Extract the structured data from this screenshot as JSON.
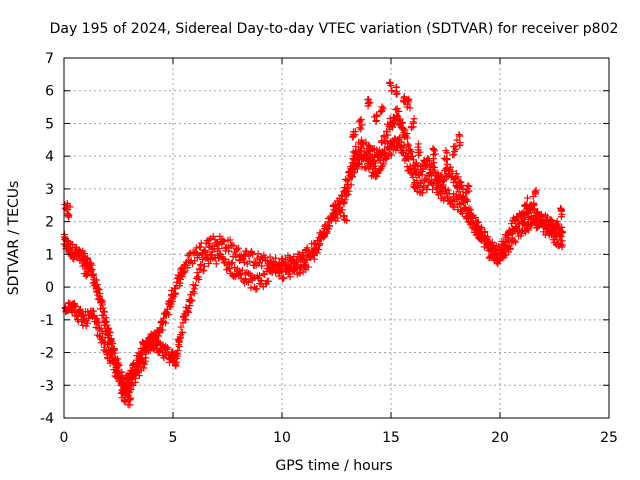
{
  "chart_data": {
    "type": "scatter",
    "title": "Day 195 of 2024, Sidereal Day-to-day VTEC variation (SDTVAR) for receiver p802",
    "xlabel": "GPS time / hours",
    "ylabel": "SDTVAR / TECUs",
    "xlim": [
      0,
      25
    ],
    "ylim": [
      -4,
      7
    ],
    "xticks": [
      0,
      5,
      10,
      15,
      20,
      25
    ],
    "yticks": [
      -4,
      -3,
      -2,
      -1,
      0,
      1,
      2,
      3,
      4,
      5,
      6,
      7
    ],
    "xtick_labels": [
      "0",
      "5",
      "10",
      "15",
      "20",
      "25"
    ],
    "ytick_labels": [
      "-4",
      "-3",
      "-2",
      "-1",
      "0",
      "1",
      "2",
      "3",
      "4",
      "5",
      "6",
      "7"
    ],
    "grid": true,
    "marker": "plus",
    "color": "#ff0000",
    "series": [
      {
        "name": "main-band",
        "points": [
          [
            0.0,
            1.4
          ],
          [
            0.2,
            1.2
          ],
          [
            0.4,
            1.1
          ],
          [
            0.6,
            1.0
          ],
          [
            0.8,
            0.9
          ],
          [
            1.0,
            0.8
          ],
          [
            1.2,
            0.6
          ],
          [
            1.4,
            0.2
          ],
          [
            1.6,
            -0.3
          ],
          [
            1.8,
            -0.8
          ],
          [
            2.0,
            -1.3
          ],
          [
            2.2,
            -1.8
          ],
          [
            2.4,
            -2.3
          ],
          [
            2.6,
            -2.7
          ],
          [
            2.8,
            -3.0
          ],
          [
            3.0,
            -2.8
          ],
          [
            3.2,
            -2.5
          ],
          [
            3.4,
            -2.2
          ],
          [
            3.6,
            -1.9
          ],
          [
            3.8,
            -1.8
          ],
          [
            4.0,
            -1.7
          ],
          [
            4.2,
            -1.6
          ],
          [
            4.5,
            -1.2
          ],
          [
            4.8,
            -0.6
          ],
          [
            5.0,
            -0.2
          ],
          [
            5.3,
            0.3
          ],
          [
            5.6,
            0.7
          ],
          [
            6.0,
            1.0
          ],
          [
            6.5,
            1.3
          ],
          [
            7.0,
            1.4
          ],
          [
            7.5,
            1.3
          ],
          [
            8.0,
            1.0
          ],
          [
            8.5,
            0.9
          ],
          [
            9.0,
            0.8
          ],
          [
            9.5,
            0.7
          ],
          [
            10.0,
            0.7
          ],
          [
            10.5,
            0.8
          ],
          [
            11.0,
            0.9
          ],
          [
            11.5,
            1.2
          ],
          [
            12.0,
            1.8
          ],
          [
            12.5,
            2.4
          ],
          [
            13.0,
            3.2
          ],
          [
            13.3,
            4.0
          ],
          [
            13.6,
            4.3
          ],
          [
            14.0,
            4.2
          ],
          [
            14.3,
            4.0
          ],
          [
            14.6,
            4.3
          ],
          [
            15.0,
            5.0
          ],
          [
            15.3,
            5.3
          ],
          [
            15.6,
            4.8
          ],
          [
            16.0,
            3.8
          ],
          [
            16.3,
            3.5
          ],
          [
            16.6,
            3.8
          ],
          [
            17.0,
            3.6
          ],
          [
            17.3,
            3.2
          ],
          [
            17.6,
            3.6
          ],
          [
            18.0,
            3.3
          ],
          [
            18.3,
            2.8
          ],
          [
            18.6,
            2.2
          ],
          [
            19.0,
            1.8
          ],
          [
            19.3,
            1.5
          ],
          [
            19.6,
            1.2
          ],
          [
            20.0,
            1.0
          ],
          [
            20.3,
            1.5
          ],
          [
            20.6,
            1.9
          ],
          [
            21.0,
            2.1
          ],
          [
            21.3,
            2.3
          ],
          [
            21.6,
            2.4
          ],
          [
            22.0,
            2.0
          ],
          [
            22.3,
            1.9
          ],
          [
            22.6,
            1.8
          ],
          [
            22.9,
            1.6
          ]
        ]
      },
      {
        "name": "lower-band",
        "points": [
          [
            0.0,
            -0.6
          ],
          [
            0.3,
            -0.5
          ],
          [
            0.6,
            -0.8
          ],
          [
            0.9,
            -1.0
          ],
          [
            1.3,
            -0.9
          ],
          [
            1.6,
            -1.3
          ],
          [
            1.9,
            -1.8
          ],
          [
            2.2,
            -2.3
          ],
          [
            2.5,
            -2.8
          ],
          [
            2.8,
            -3.3
          ],
          [
            3.0,
            -3.0
          ],
          [
            3.3,
            -2.7
          ],
          [
            3.6,
            -2.3
          ],
          [
            4.0,
            -1.6
          ],
          [
            4.3,
            -1.9
          ],
          [
            4.6,
            -2.0
          ],
          [
            4.9,
            -2.1
          ],
          [
            5.1,
            -2.3
          ],
          [
            5.3,
            -1.5
          ],
          [
            5.6,
            -0.8
          ],
          [
            5.9,
            -0.2
          ],
          [
            6.3,
            0.6
          ],
          [
            6.8,
            1.0
          ],
          [
            7.3,
            0.8
          ],
          [
            7.8,
            0.5
          ],
          [
            8.3,
            0.3
          ],
          [
            8.8,
            0.1
          ],
          [
            9.3,
            0.3
          ],
          [
            9.8,
            0.5
          ],
          [
            10.3,
            0.4
          ],
          [
            10.8,
            0.6
          ],
          [
            11.3,
            0.9
          ],
          [
            11.8,
            1.4
          ],
          [
            12.3,
            2.0
          ],
          [
            12.8,
            2.6
          ],
          [
            13.2,
            3.4
          ],
          [
            13.5,
            3.9
          ],
          [
            13.9,
            3.8
          ],
          [
            14.2,
            3.5
          ],
          [
            14.5,
            3.7
          ],
          [
            14.8,
            4.1
          ],
          [
            15.1,
            4.3
          ],
          [
            15.4,
            4.4
          ],
          [
            15.7,
            4.0
          ],
          [
            16.0,
            3.2
          ],
          [
            16.4,
            3.0
          ],
          [
            16.8,
            3.3
          ],
          [
            17.2,
            2.9
          ],
          [
            17.6,
            2.8
          ],
          [
            18.0,
            2.6
          ],
          [
            18.4,
            2.3
          ],
          [
            18.8,
            1.9
          ],
          [
            19.2,
            1.5
          ],
          [
            19.6,
            1.0
          ],
          [
            19.9,
            0.9
          ],
          [
            20.2,
            1.1
          ],
          [
            20.6,
            1.5
          ],
          [
            21.0,
            1.8
          ],
          [
            21.4,
            2.0
          ],
          [
            21.8,
            1.9
          ],
          [
            22.2,
            1.7
          ],
          [
            22.6,
            1.5
          ],
          [
            22.9,
            1.3
          ]
        ]
      },
      {
        "name": "upper-excursions",
        "points": [
          [
            0.1,
            2.4
          ],
          [
            0.2,
            2.3
          ],
          [
            13.3,
            4.7
          ],
          [
            13.6,
            5.0
          ],
          [
            14.0,
            5.6
          ],
          [
            14.3,
            5.2
          ],
          [
            14.6,
            5.4
          ],
          [
            15.0,
            6.1
          ],
          [
            15.3,
            6.0
          ],
          [
            15.6,
            5.8
          ],
          [
            15.8,
            5.6
          ],
          [
            16.0,
            5.0
          ],
          [
            16.3,
            4.2
          ],
          [
            17.0,
            4.1
          ],
          [
            17.5,
            4.0
          ],
          [
            17.9,
            4.2
          ],
          [
            18.1,
            4.5
          ],
          [
            18.5,
            3.0
          ],
          [
            21.2,
            2.6
          ],
          [
            21.6,
            2.8
          ],
          [
            22.8,
            2.3
          ],
          [
            3.0,
            -3.5
          ],
          [
            2.7,
            -3.3
          ],
          [
            1.0,
            0.4
          ],
          [
            12.9,
            2.1
          ],
          [
            12.4,
            2.4
          ]
        ]
      }
    ]
  }
}
